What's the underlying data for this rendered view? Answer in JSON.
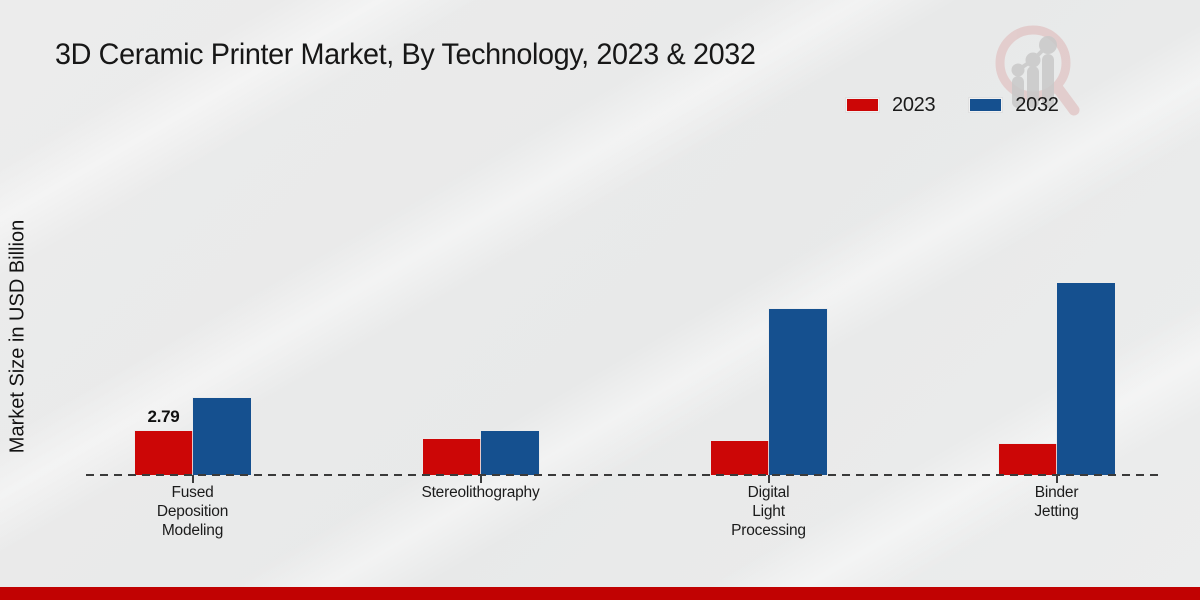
{
  "page": {
    "title": "3D Ceramic Printer Market, By Technology, 2023 & 2032",
    "background_color": "#e9eaea",
    "footer_bar_color": "#c10202"
  },
  "y_axis": {
    "label": "Market Size in USD Billion"
  },
  "legend": {
    "position": "top-right",
    "items": [
      {
        "label": "2023",
        "color": "#cc0606"
      },
      {
        "label": "2032",
        "color": "#15508f"
      }
    ]
  },
  "logo": {
    "name": "market-research-magnifier-watermark",
    "ring_color": "#e0c2c2",
    "chart_color": "#c9c9c9"
  },
  "chart_data": {
    "type": "bar",
    "title": "3D Ceramic Printer Market, By Technology, 2023 & 2032",
    "xlabel": "",
    "ylabel": "Market Size in USD Billion",
    "categories": [
      "Fused\nDeposition\nModeling",
      "Stereolithography",
      "Digital\nLight\nProcessing",
      "Binder\nJetting"
    ],
    "series": [
      {
        "name": "2023",
        "color": "#cc0606",
        "values": [
          2.79,
          2.3,
          2.15,
          1.95
        ],
        "point_labels": [
          "2.79",
          "",
          "",
          ""
        ]
      },
      {
        "name": "2032",
        "color": "#15508f",
        "values": [
          4.88,
          2.8,
          10.5,
          12.2
        ],
        "point_labels": [
          "",
          "",
          "",
          ""
        ]
      }
    ],
    "value_axis_hidden": true,
    "baseline_style": "dashed",
    "grid": false,
    "legend_position": "top-right",
    "note": "Only the first 2023 bar shows a printed value (2.79); other values estimated from bar heights."
  }
}
